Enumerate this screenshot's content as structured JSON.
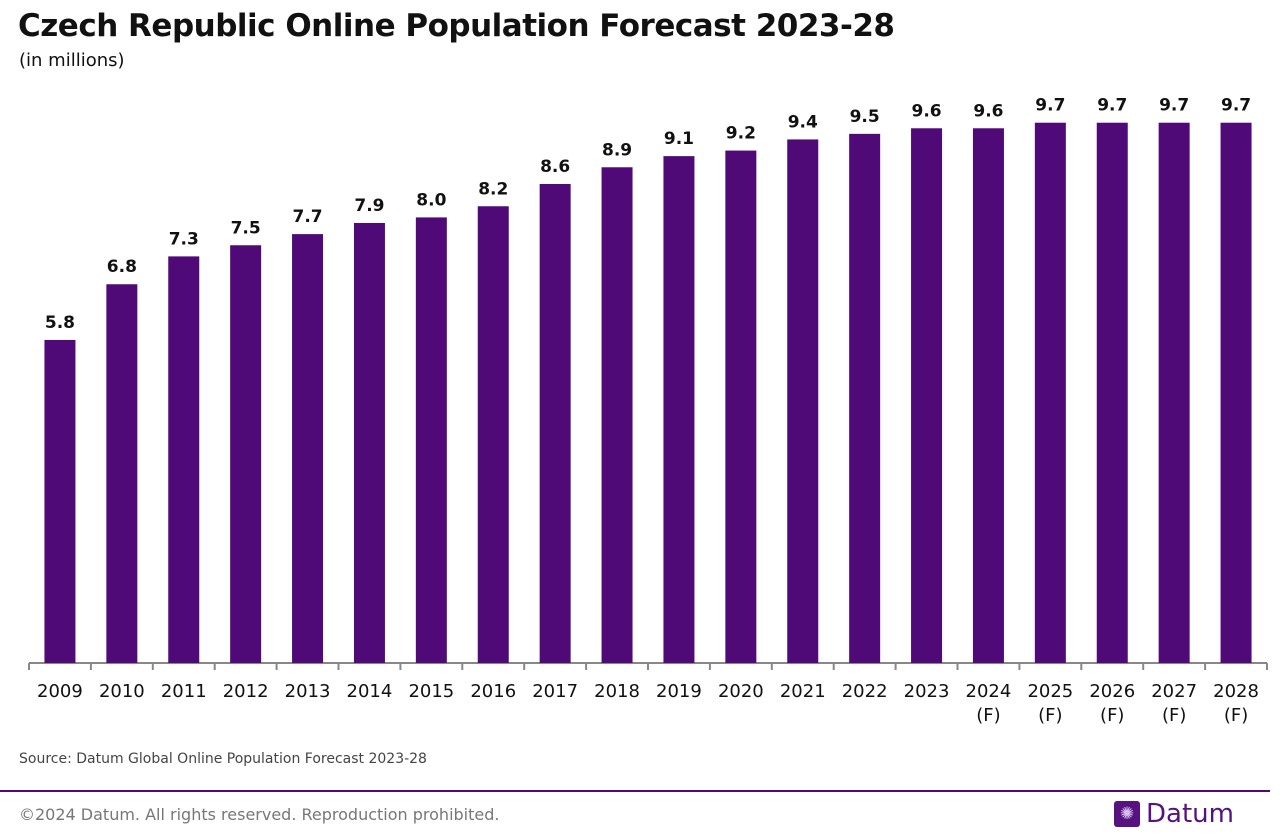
{
  "chart_data": {
    "type": "bar",
    "title": "Czech Republic Online Population Forecast 2023-28",
    "subtitle": "(in millions)",
    "categories": [
      "2009",
      "2010",
      "2011",
      "2012",
      "2013",
      "2014",
      "2015",
      "2016",
      "2017",
      "2018",
      "2019",
      "2020",
      "2021",
      "2022",
      "2023",
      "2024\n(F)",
      "2025\n(F)",
      "2026\n(F)",
      "2027\n(F)",
      "2028\n(F)"
    ],
    "values": [
      5.8,
      6.8,
      7.3,
      7.5,
      7.7,
      7.9,
      8.0,
      8.2,
      8.6,
      8.9,
      9.1,
      9.2,
      9.4,
      9.5,
      9.6,
      9.6,
      9.7,
      9.7,
      9.7,
      9.7
    ],
    "xlabel": "",
    "ylabel": "",
    "ylim": [
      0,
      10.3
    ],
    "grid": false,
    "bar_color": "#500a78"
  },
  "source": "Source: Datum Global Online Population Forecast 2023-28",
  "footer": {
    "copyright": "©2024 Datum. All rights reserved. Reproduction prohibited.",
    "logo_text": "Datum",
    "logo_icon": "globe-icon",
    "accent": "#56127f"
  }
}
